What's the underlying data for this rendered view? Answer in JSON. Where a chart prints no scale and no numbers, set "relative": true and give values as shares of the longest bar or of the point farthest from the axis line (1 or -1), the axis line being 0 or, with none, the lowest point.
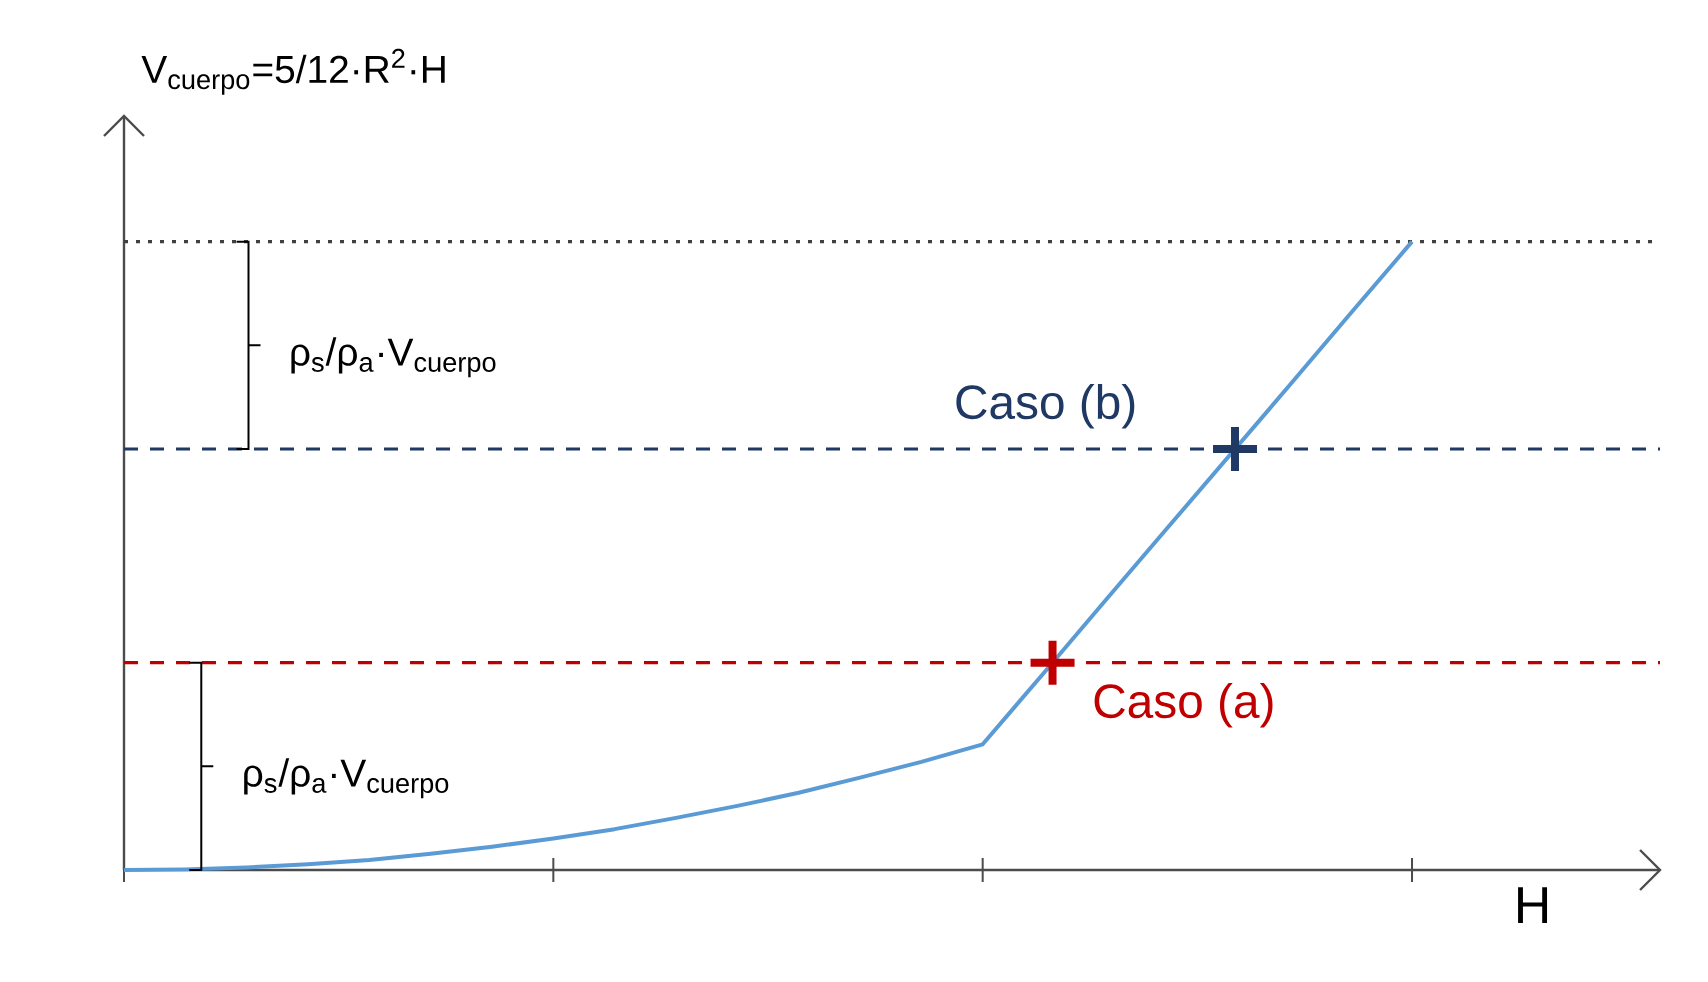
{
  "chart_data": {
    "type": "line",
    "relative": true,
    "xlabel": "H",
    "ylabel": "V$_{cuerpo}$=5/12·R$^{2}$·H",
    "categories": [
      null,
      null,
      null,
      null,
      null,
      null,
      null,
      null,
      null,
      null,
      null,
      null,
      null,
      null,
      null,
      null,
      null,
      null,
      null,
      null,
      null,
      null
    ],
    "series": [
      {
        "color": "#5b9bd5",
        "marker": "none",
        "values": [
          0,
          0.001,
          0.004,
          0.009,
          0.016,
          0.026,
          0.037,
          0.05,
          0.065,
          0.083,
          0.102,
          0.123,
          0.147,
          0.172,
          0.2,
          0.314,
          0.429,
          0.543,
          0.657,
          0.771,
          0.886,
          1
        ]
      }
    ],
    "ref_lines": [
      {
        "axis": "y",
        "value": 1,
        "color": "#404040",
        "line_style": "dotted"
      },
      {
        "axis": "y",
        "value": 0.67,
        "color": "#1f3864",
        "line_style": "dashed",
        "label": "Caso (b)"
      },
      {
        "axis": "y",
        "value": 0.33,
        "color": "#c00000",
        "line_style": "dashed",
        "label": "Caso (a)"
      }
    ],
    "annotations": [
      "ρ$_{s}$/ρ$_{a}$·V$_{cuerpo}$",
      "ρ$_{s}$/ρ$_{a}$·V$_{cuerpo}$"
    ]
  }
}
